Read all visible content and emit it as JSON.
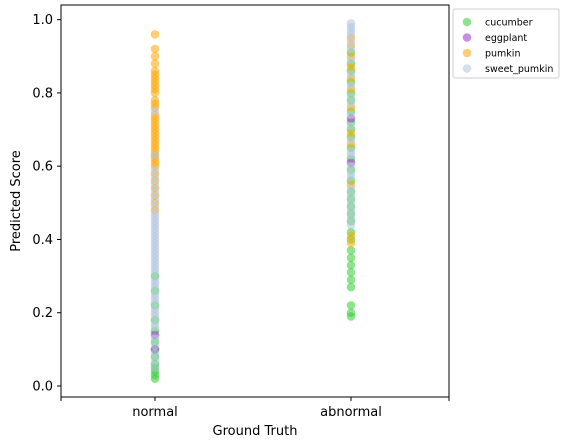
{
  "chart_data": {
    "type": "scatter",
    "xlabel": "Ground Truth",
    "ylabel": "Predicted Score",
    "categories": [
      "normal",
      "abnormal"
    ],
    "x_ticks_extra": 2,
    "ylim": [
      -0.03,
      1.04
    ],
    "yticks": [
      0.0,
      0.2,
      0.4,
      0.6,
      0.8,
      1.0
    ],
    "ytick_labels": [
      "0.0",
      "0.2",
      "0.4",
      "0.6",
      "0.8",
      "1.0"
    ],
    "legend_position": "outside-top-right",
    "series": [
      {
        "name": "cucumber",
        "color": "#32cd32",
        "points": [
          [
            "normal",
            0.02
          ],
          [
            "normal",
            0.03
          ],
          [
            "normal",
            0.04
          ],
          [
            "normal",
            0.05
          ],
          [
            "normal",
            0.06
          ],
          [
            "normal",
            0.08
          ],
          [
            "normal",
            0.1
          ],
          [
            "normal",
            0.12
          ],
          [
            "normal",
            0.15
          ],
          [
            "normal",
            0.18
          ],
          [
            "normal",
            0.22
          ],
          [
            "normal",
            0.26
          ],
          [
            "normal",
            0.3
          ],
          [
            "abnormal",
            0.19
          ],
          [
            "abnormal",
            0.2
          ],
          [
            "abnormal",
            0.22
          ],
          [
            "abnormal",
            0.27
          ],
          [
            "abnormal",
            0.29
          ],
          [
            "abnormal",
            0.31
          ],
          [
            "abnormal",
            0.33
          ],
          [
            "abnormal",
            0.35
          ],
          [
            "abnormal",
            0.37
          ],
          [
            "abnormal",
            0.4
          ],
          [
            "abnormal",
            0.42
          ],
          [
            "abnormal",
            0.45
          ],
          [
            "abnormal",
            0.47
          ],
          [
            "abnormal",
            0.49
          ],
          [
            "abnormal",
            0.51
          ],
          [
            "abnormal",
            0.53
          ],
          [
            "abnormal",
            0.56
          ],
          [
            "abnormal",
            0.59
          ],
          [
            "abnormal",
            0.62
          ],
          [
            "abnormal",
            0.65
          ],
          [
            "abnormal",
            0.68
          ],
          [
            "abnormal",
            0.7
          ],
          [
            "abnormal",
            0.72
          ],
          [
            "abnormal",
            0.75
          ],
          [
            "abnormal",
            0.78
          ],
          [
            "abnormal",
            0.8
          ],
          [
            "abnormal",
            0.83
          ],
          [
            "abnormal",
            0.86
          ],
          [
            "abnormal",
            0.88
          ],
          [
            "abnormal",
            0.91
          ]
        ]
      },
      {
        "name": "eggplant",
        "color": "#9932cc",
        "points": [
          [
            "normal",
            0.1
          ],
          [
            "normal",
            0.14
          ],
          [
            "abnormal",
            0.61
          ],
          [
            "abnormal",
            0.73
          ]
        ]
      },
      {
        "name": "pumkin",
        "color": "#ffa500",
        "points": [
          [
            "normal",
            0.96
          ],
          [
            "normal",
            0.92
          ],
          [
            "normal",
            0.9
          ],
          [
            "normal",
            0.88
          ],
          [
            "normal",
            0.86
          ],
          [
            "normal",
            0.85
          ],
          [
            "normal",
            0.84
          ],
          [
            "normal",
            0.83
          ],
          [
            "normal",
            0.82
          ],
          [
            "normal",
            0.81
          ],
          [
            "normal",
            0.8
          ],
          [
            "normal",
            0.78
          ],
          [
            "normal",
            0.77
          ],
          [
            "normal",
            0.76
          ],
          [
            "normal",
            0.74
          ],
          [
            "normal",
            0.73
          ],
          [
            "normal",
            0.72
          ],
          [
            "normal",
            0.71
          ],
          [
            "normal",
            0.7
          ],
          [
            "normal",
            0.69
          ],
          [
            "normal",
            0.68
          ],
          [
            "normal",
            0.67
          ],
          [
            "normal",
            0.66
          ],
          [
            "normal",
            0.65
          ],
          [
            "normal",
            0.64
          ],
          [
            "normal",
            0.63
          ],
          [
            "normal",
            0.62
          ],
          [
            "normal",
            0.61
          ],
          [
            "normal",
            0.6
          ],
          [
            "normal",
            0.58
          ],
          [
            "normal",
            0.56
          ],
          [
            "normal",
            0.54
          ],
          [
            "normal",
            0.52
          ],
          [
            "normal",
            0.5
          ],
          [
            "normal",
            0.48
          ],
          [
            "abnormal",
            0.39
          ],
          [
            "abnormal",
            0.41
          ],
          [
            "abnormal",
            0.55
          ],
          [
            "abnormal",
            0.66
          ],
          [
            "abnormal",
            0.69
          ],
          [
            "abnormal",
            0.76
          ],
          [
            "abnormal",
            0.81
          ],
          [
            "abnormal",
            0.84
          ],
          [
            "abnormal",
            0.87
          ],
          [
            "abnormal",
            0.9
          ],
          [
            "abnormal",
            0.93
          ],
          [
            "abnormal",
            0.95
          ]
        ]
      },
      {
        "name": "sweet_pumkin",
        "color": "#b0c4de",
        "points": [
          [
            "normal",
            0.05
          ],
          [
            "normal",
            0.07
          ],
          [
            "normal",
            0.09
          ],
          [
            "normal",
            0.11
          ],
          [
            "normal",
            0.13
          ],
          [
            "normal",
            0.16
          ],
          [
            "normal",
            0.17
          ],
          [
            "normal",
            0.19
          ],
          [
            "normal",
            0.2
          ],
          [
            "normal",
            0.21
          ],
          [
            "normal",
            0.23
          ],
          [
            "normal",
            0.24
          ],
          [
            "normal",
            0.25
          ],
          [
            "normal",
            0.27
          ],
          [
            "normal",
            0.28
          ],
          [
            "normal",
            0.29
          ],
          [
            "normal",
            0.31
          ],
          [
            "normal",
            0.32
          ],
          [
            "normal",
            0.33
          ],
          [
            "normal",
            0.34
          ],
          [
            "normal",
            0.35
          ],
          [
            "normal",
            0.36
          ],
          [
            "normal",
            0.37
          ],
          [
            "normal",
            0.38
          ],
          [
            "normal",
            0.39
          ],
          [
            "normal",
            0.4
          ],
          [
            "normal",
            0.41
          ],
          [
            "normal",
            0.42
          ],
          [
            "normal",
            0.43
          ],
          [
            "normal",
            0.44
          ],
          [
            "normal",
            0.45
          ],
          [
            "normal",
            0.46
          ],
          [
            "normal",
            0.47
          ],
          [
            "normal",
            0.49
          ],
          [
            "normal",
            0.51
          ],
          [
            "normal",
            0.53
          ],
          [
            "normal",
            0.55
          ],
          [
            "normal",
            0.57
          ],
          [
            "normal",
            0.59
          ],
          [
            "normal",
            0.63
          ],
          [
            "normal",
            0.75
          ],
          [
            "abnormal",
            0.44
          ],
          [
            "abnormal",
            0.46
          ],
          [
            "abnormal",
            0.48
          ],
          [
            "abnormal",
            0.5
          ],
          [
            "abnormal",
            0.52
          ],
          [
            "abnormal",
            0.54
          ],
          [
            "abnormal",
            0.57
          ],
          [
            "abnormal",
            0.58
          ],
          [
            "abnormal",
            0.6
          ],
          [
            "abnormal",
            0.63
          ],
          [
            "abnormal",
            0.64
          ],
          [
            "abnormal",
            0.67
          ],
          [
            "abnormal",
            0.71
          ],
          [
            "abnormal",
            0.74
          ],
          [
            "abnormal",
            0.77
          ],
          [
            "abnormal",
            0.79
          ],
          [
            "abnormal",
            0.82
          ],
          [
            "abnormal",
            0.85
          ],
          [
            "abnormal",
            0.89
          ],
          [
            "abnormal",
            0.92
          ],
          [
            "abnormal",
            0.94
          ],
          [
            "abnormal",
            0.96
          ],
          [
            "abnormal",
            0.97
          ],
          [
            "abnormal",
            0.98
          ],
          [
            "abnormal",
            0.99
          ]
        ]
      }
    ]
  }
}
